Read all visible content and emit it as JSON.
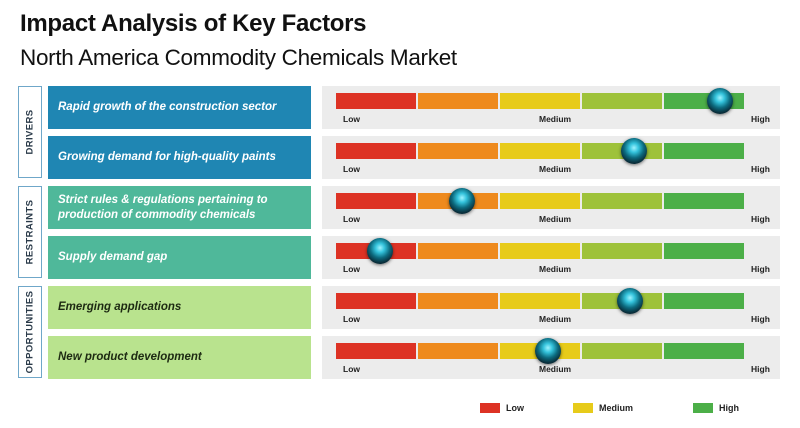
{
  "header": {
    "title": "Impact Analysis of Key Factors",
    "subtitle": "North America Commodity Chemicals Market"
  },
  "scale": {
    "low_label": "Low",
    "medium_label": "Medium",
    "high_label": "High",
    "colors": [
      "#dd3224",
      "#ee8a1d",
      "#e7cb1a",
      "#9ec23a",
      "#4caf48"
    ]
  },
  "categories": [
    {
      "label": "DRIVERS"
    },
    {
      "label": "RESTRAINTS"
    },
    {
      "label": "OPPORTUNITIES"
    }
  ],
  "chart_data": {
    "type": "bar",
    "title": "Impact Analysis of Key Factors",
    "subtitle": "North America Commodity Chemicals Market",
    "scale": [
      "Low",
      "Medium",
      "High"
    ],
    "factors": [
      {
        "category": "DRIVERS",
        "text": "Rapid growth of the construction sector",
        "value": 0.94
      },
      {
        "category": "DRIVERS",
        "text": "Growing demand for high-quality paints",
        "value": 0.73
      },
      {
        "category": "RESTRAINTS",
        "text": "Strict rules & regulations pertaining to production of commodity chemicals",
        "value": 0.31
      },
      {
        "category": "RESTRAINTS",
        "text": "Supply demand gap",
        "value": 0.11
      },
      {
        "category": "OPPORTUNITIES",
        "text": "Emerging applications",
        "value": 0.72
      },
      {
        "category": "OPPORTUNITIES",
        "text": "New product development",
        "value": 0.52
      }
    ]
  },
  "legend": [
    {
      "label": "Low",
      "color": "#dd3224"
    },
    {
      "label": "Medium",
      "color": "#e7cb1a"
    },
    {
      "label": "High",
      "color": "#4caf48"
    }
  ]
}
